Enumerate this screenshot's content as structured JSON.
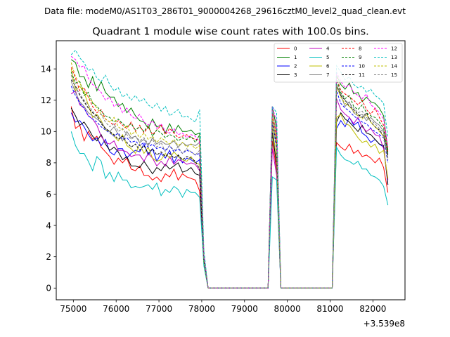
{
  "chart_data": {
    "type": "line",
    "suptitle": "Data file: modeM0/AS1T03_286T01_9000004268_29616cztM0_level2_quad_clean.evt",
    "title": "Quadrant 1 module wise count rates with 100.0s bins.",
    "xlabel": "",
    "ylabel": "",
    "x_offset_label": "+3.539e8",
    "xlim": [
      74600,
      82750
    ],
    "ylim": [
      -0.75,
      15.8
    ],
    "x_ticks": [
      75000,
      76000,
      77000,
      78000,
      79000,
      80000,
      81000,
      82000
    ],
    "x_tick_labels": [
      "75000",
      "76000",
      "77000",
      "78000",
      "79000",
      "80000",
      "81000",
      "82000"
    ],
    "y_ticks": [
      0,
      2,
      4,
      6,
      8,
      10,
      12,
      14
    ],
    "y_tick_labels": [
      "0",
      "2",
      "4",
      "6",
      "8",
      "10",
      "12",
      "14"
    ],
    "legend_location": "upper right",
    "x": [
      74950,
      75050,
      75150,
      75250,
      75350,
      75450,
      75550,
      75650,
      75750,
      75850,
      75950,
      76050,
      76150,
      76250,
      76350,
      76450,
      76550,
      76650,
      76750,
      76850,
      76950,
      77050,
      77150,
      77250,
      77350,
      77450,
      77550,
      77650,
      77750,
      77850,
      77950,
      78050,
      78150,
      79550,
      79650,
      79750,
      79850,
      81050,
      81150,
      81250,
      81350,
      81450,
      81550,
      81650,
      81750,
      81850,
      81950,
      82050,
      82150,
      82250,
      82350
    ],
    "series": [
      {
        "name": "0",
        "color": "#ff0000",
        "dash": false,
        "values": [
          11.6,
          10.2,
          10.4,
          9.4,
          10,
          9.5,
          9.7,
          9,
          8.7,
          8.4,
          7.9,
          8.3,
          8,
          8.3,
          7.6,
          7.5,
          7.8,
          7.2,
          7.2,
          6.9,
          7.1,
          6.8,
          7.3,
          7.1,
          7.6,
          6.9,
          7.3,
          7.1,
          7,
          6.9,
          6.2,
          1.7,
          0,
          0,
          9.4,
          7.5,
          0,
          0,
          9.3,
          9,
          8.8,
          9.2,
          8.6,
          8.8,
          8.4,
          8.5,
          8.3,
          8.0,
          8.3,
          7.7,
          6.1
        ]
      },
      {
        "name": "1",
        "color": "#008000",
        "dash": false,
        "values": [
          14.6,
          14.4,
          13.5,
          13.5,
          12.8,
          13.5,
          12.6,
          13.2,
          12.5,
          12.2,
          12.2,
          11.6,
          11.8,
          11.2,
          11.5,
          11,
          10.7,
          10.6,
          10.2,
          10.8,
          10.3,
          10.4,
          9.9,
          10.5,
          9.9,
          10.4,
          10,
          10,
          10.1,
          9.8,
          9.9,
          2.1,
          0,
          0,
          11.6,
          10.2,
          0,
          0,
          13.6,
          13.0,
          12.7,
          13.1,
          12.4,
          12.5,
          11.9,
          12.2,
          11.9,
          11.8,
          11.5,
          11.0,
          8.8
        ]
      },
      {
        "name": "2",
        "color": "#0000ff",
        "dash": false,
        "values": [
          11.2,
          10.6,
          10.7,
          10.3,
          9.8,
          9.4,
          9.6,
          9.1,
          9.5,
          8.7,
          8.5,
          8.9,
          8.9,
          8.3,
          8.6,
          8.8,
          8.7,
          9.2,
          8.5,
          8.9,
          8.1,
          8.6,
          8.3,
          8.8,
          8,
          8.5,
          8,
          8.3,
          8.2,
          8,
          8.2,
          1.6,
          0,
          0,
          10,
          7.8,
          0,
          0,
          10.2,
          10.7,
          10.3,
          10.9,
          10.4,
          10.6,
          9.9,
          9.7,
          9.3,
          9.5,
          9.2,
          9.0,
          6.6
        ]
      },
      {
        "name": "3",
        "color": "#000000",
        "dash": false,
        "values": [
          11.5,
          11.0,
          10.4,
          10.6,
          10.2,
          9.7,
          9.4,
          9.8,
          9.2,
          8.8,
          9,
          8.7,
          8.2,
          8.4,
          7.8,
          7.8,
          7.7,
          8.1,
          7.7,
          7.3,
          7.7,
          7.5,
          7.9,
          7.6,
          7.8,
          8,
          7.4,
          7.5,
          7.7,
          7.3,
          7.2,
          1.5,
          0,
          0,
          9.9,
          7.9,
          0,
          0,
          10.6,
          11.2,
          10.8,
          10.6,
          10.3,
          10,
          10.4,
          9.9,
          9.8,
          9.5,
          9.2,
          9.1,
          6.6
        ]
      },
      {
        "name": "4",
        "color": "#bf00bf",
        "dash": false,
        "values": [
          12.4,
          12.6,
          11.7,
          11.5,
          11,
          10.8,
          10.4,
          9.7,
          9.3,
          9.2,
          9.4,
          8.8,
          8.8,
          8.7,
          8.4,
          8.5,
          8.5,
          8.1,
          8.6,
          8.3,
          7.8,
          8.1,
          7.8,
          8.4,
          7.9,
          8.2,
          8.1,
          7.9,
          8,
          7.9,
          7.5,
          1.6,
          0,
          0,
          8.9,
          7.2,
          0,
          0,
          12.1,
          11.4,
          11.1,
          10.9,
          10.5,
          10.9,
          10.3,
          10.0,
          10.2,
          9.8,
          9.7,
          8.9,
          6.9
        ]
      },
      {
        "name": "5",
        "color": "#00bfbf",
        "dash": false,
        "values": [
          10,
          9.1,
          8.6,
          8.6,
          8.1,
          7.5,
          8.4,
          8.1,
          7,
          7.4,
          6.8,
          7.4,
          6.9,
          6.9,
          6.4,
          6.5,
          6.4,
          6.5,
          6.6,
          6.3,
          6.7,
          5.9,
          6.3,
          6.1,
          6.5,
          6.3,
          5.8,
          6.3,
          6.1,
          6.1,
          5.8,
          1.4,
          0,
          0,
          7.1,
          6.9,
          0,
          0,
          9,
          8.5,
          8.2,
          8.1,
          7.9,
          8.1,
          7.6,
          7.6,
          7.2,
          7.1,
          6.9,
          6.5,
          5.3
        ]
      },
      {
        "name": "6",
        "color": "#bfbf00",
        "dash": false,
        "values": [
          14,
          12.6,
          12.9,
          12.5,
          11.7,
          10.9,
          11.1,
          10.7,
          10.1,
          10,
          9.7,
          9.4,
          9.8,
          9.1,
          8.9,
          8.6,
          9.2,
          8.6,
          9,
          8.3,
          8.1,
          8.2,
          8.6,
          8.3,
          8.7,
          8.4,
          8.2,
          8.1,
          8.4,
          8,
          7.9,
          1.7,
          0,
          0,
          10.3,
          8.2,
          0,
          0,
          10.9,
          11.1,
          10.5,
          10.4,
          10.0,
          9.6,
          9.3,
          9.4,
          9.0,
          9.2,
          8.6,
          8.8,
          7.0
        ]
      },
      {
        "name": "7",
        "color": "#808080",
        "dash": false,
        "values": [
          13.2,
          12.5,
          11.9,
          11.6,
          11.2,
          11,
          10.8,
          10.6,
          10.2,
          10,
          10.3,
          9.8,
          9.4,
          10,
          9.6,
          9.7,
          9.3,
          9.5,
          9.1,
          9.6,
          9.2,
          9.4,
          9.2,
          9.2,
          9.4,
          9,
          9.3,
          9.1,
          9.2,
          9.1,
          9.3,
          2,
          0,
          0,
          11.2,
          9.8,
          0,
          0,
          12.8,
          12.3,
          11.6,
          11.9,
          11.2,
          11.0,
          11.1,
          10.7,
          10.9,
          10.6,
          10.4,
          10.0,
          8.3
        ]
      },
      {
        "name": "8",
        "color": "#ff0000",
        "dash": true,
        "values": [
          14.1,
          13.4,
          12.6,
          12.8,
          12.2,
          11.6,
          11.2,
          11.4,
          10.8,
          10.6,
          10.4,
          10.7,
          10.4,
          10.2,
          10.6,
          10.0,
          10.4,
          9.9,
          10.3,
          9.8,
          10.1,
          10.4,
          9.8,
          10.2,
          9.9,
          9.6,
          9.7,
          9.8,
          9.6,
          9.5,
          9.5,
          2,
          0,
          0,
          11.2,
          9.6,
          0,
          0,
          13.5,
          12.6,
          12.4,
          12.2,
          12.0,
          11.7,
          12.0,
          11.4,
          11.1,
          11.5,
          10.9,
          10.4,
          8.7
        ]
      },
      {
        "name": "9",
        "color": "#008000",
        "dash": true,
        "values": [
          13.8,
          13.1,
          13.2,
          12.3,
          12.5,
          11.8,
          11.6,
          11.3,
          11.0,
          10.9,
          10.6,
          10.8,
          10.5,
          10.3,
          10.5,
          10.1,
          10.3,
          10.0,
          10.4,
          9.7,
          10.1,
          9.9,
          9.6,
          9.8,
          9.7,
          9.4,
          9.6,
          9.5,
          9.7,
          9.3,
          9.8,
          2,
          0,
          0,
          11.6,
          10.2,
          0,
          0,
          13.3,
          12.5,
          12.1,
          12.3,
          11.6,
          11.4,
          11.7,
          11.2,
          11.0,
          10.9,
          10.6,
          10.2,
          8.6
        ]
      },
      {
        "name": "10",
        "color": "#0000ff",
        "dash": true,
        "values": [
          12.9,
          12.3,
          11.8,
          11.5,
          11.0,
          10.8,
          10.6,
          10.3,
          10.1,
          9.9,
          9.7,
          9.9,
          9.5,
          9.6,
          9.3,
          9.4,
          9.1,
          9.3,
          9.0,
          9.2,
          8.9,
          9.0,
          8.8,
          9.1,
          8.7,
          8.9,
          8.6,
          8.8,
          8.7,
          8.5,
          8.6,
          1.9,
          0,
          0,
          10.6,
          8.9,
          0,
          0,
          12.6,
          11.8,
          11.5,
          11.3,
          11.0,
          10.8,
          10.6,
          10.5,
          10.2,
          10.0,
          9.8,
          9.6,
          8.0
        ]
      },
      {
        "name": "11",
        "color": "#000000",
        "dash": true,
        "values": [
          13.3,
          12.9,
          12.3,
          11.9,
          11.5,
          11.2,
          11.0,
          10.5,
          10.2,
          10.0,
          9.8,
          9.5,
          9.7,
          9.3,
          9.0,
          9.2,
          8.8,
          9.1,
          8.6,
          8.9,
          8.5,
          8.7,
          8.4,
          8.6,
          8.3,
          8.5,
          8.2,
          8.4,
          8.3,
          8.1,
          7.6,
          1.8,
          0,
          0,
          10.8,
          9.2,
          0,
          0,
          13.0,
          12.3,
          12.0,
          11.6,
          11.4,
          11.1,
          10.9,
          11.2,
          10.6,
          10.3,
          10.1,
          9.7,
          8.5
        ]
      },
      {
        "name": "12",
        "color": "#ff00ff",
        "dash": true,
        "values": [
          14.8,
          14.6,
          14.1,
          14.2,
          13.4,
          13.0,
          12.8,
          12.5,
          12.0,
          12.2,
          11.6,
          11.8,
          11.2,
          11.5,
          11.0,
          10.8,
          11.1,
          10.6,
          10.4,
          10.7,
          10.2,
          10.5,
          10.0,
          9.9,
          10.2,
          9.8,
          9.9,
          9.6,
          9.8,
          9.7,
          9.3,
          2.1,
          0,
          0,
          11.6,
          10.6,
          0,
          0,
          13.8,
          13.2,
          12.8,
          13.0,
          12.5,
          12.3,
          12.1,
          12.4,
          11.7,
          11.5,
          11.2,
          10.8,
          9.0
        ]
      },
      {
        "name": "13",
        "color": "#00bfbf",
        "dash": true,
        "values": [
          14.9,
          15.2,
          14.7,
          14.4,
          13.9,
          14.0,
          13.4,
          13.2,
          13.6,
          13.0,
          12.6,
          12.8,
          12.2,
          12.4,
          12.0,
          12.3,
          11.9,
          12.1,
          11.7,
          11.5,
          11.8,
          11.3,
          11.6,
          11.0,
          11.2,
          11.4,
          10.9,
          11.0,
          10.8,
          10.6,
          11.4,
          2.4,
          0,
          0,
          11.6,
          11.2,
          0,
          0,
          14.2,
          13.8,
          13.3,
          13.5,
          13.0,
          12.8,
          12.9,
          12.5,
          12.7,
          12.3,
          12.1,
          11.8,
          9.6
        ]
      },
      {
        "name": "14",
        "color": "#bfbf00",
        "dash": true,
        "values": [
          14.4,
          13.5,
          13.1,
          12.6,
          12.2,
          11.9,
          11.5,
          11.1,
          10.8,
          10.6,
          10.9,
          10.3,
          10.1,
          10.4,
          9.8,
          10.0,
          9.6,
          9.9,
          9.5,
          9.7,
          9.3,
          9.6,
          9.4,
          9.2,
          9.5,
          9.1,
          9.3,
          9.0,
          9.2,
          8.9,
          9.1,
          1.9,
          0,
          0,
          10.8,
          9.4,
          0,
          0,
          12.9,
          12.2,
          11.8,
          11.6,
          11.3,
          11.0,
          10.8,
          11.1,
          10.6,
          10.3,
          10.0,
          9.7,
          8.3
        ]
      },
      {
        "name": "15",
        "color": "#808080",
        "dash": true,
        "values": [
          13.6,
          12.8,
          12.4,
          12.0,
          11.7,
          11.3,
          10.9,
          11.1,
          10.6,
          10.3,
          10.5,
          10.0,
          10.2,
          9.8,
          9.5,
          9.7,
          9.4,
          9.6,
          9.2,
          9.5,
          9.0,
          9.3,
          8.7,
          9.1,
          8.8,
          9.0,
          8.6,
          8.9,
          8.7,
          8.5,
          8.8,
          1.9,
          0,
          0,
          10.7,
          9.0,
          0,
          0,
          13.0,
          12.4,
          12.0,
          11.8,
          11.5,
          11.2,
          11.3,
          10.9,
          10.7,
          10.5,
          10.2,
          9.9,
          8.2
        ]
      }
    ]
  }
}
